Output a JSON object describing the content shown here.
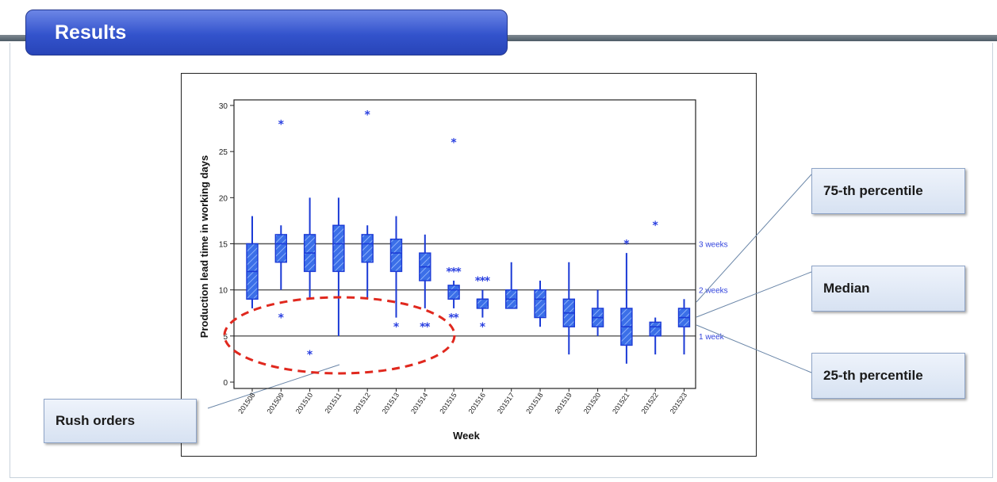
{
  "header": {
    "title": "Results"
  },
  "callouts": {
    "p75": "75-th percentile",
    "median": "Median",
    "p25": "25-th percentile",
    "rush": "Rush orders"
  },
  "colors": {
    "box": "#3b6fe8",
    "box_dark": "#1b3ad6",
    "outlier": "#2a40e0",
    "ellipse": "#e0281e",
    "header": "#3353cc"
  },
  "chart_data": {
    "type": "box",
    "xlabel": "Week",
    "ylabel": "Production lead time in working days",
    "ylim": [
      0,
      30
    ],
    "yticks": [
      0,
      5,
      10,
      15,
      20,
      25,
      30
    ],
    "categories": [
      "201508",
      "201509",
      "201510",
      "201511",
      "201512",
      "201513",
      "201514",
      "201515",
      "201516",
      "201517",
      "201518",
      "201519",
      "201520",
      "201521",
      "201522",
      "201523"
    ],
    "boxes": [
      {
        "q1": 9,
        "median": 12,
        "q3": 15,
        "whisker_low": 8,
        "whisker_high": 18,
        "outliers": []
      },
      {
        "q1": 13,
        "median": 15,
        "q3": 16,
        "whisker_low": 10,
        "whisker_high": 17,
        "outliers": [
          28,
          7
        ]
      },
      {
        "q1": 12,
        "median": 14,
        "q3": 16,
        "whisker_low": 9,
        "whisker_high": 20,
        "outliers": [
          3
        ]
      },
      {
        "q1": 12,
        "median": 15,
        "q3": 17,
        "whisker_low": 5,
        "whisker_high": 20,
        "outliers": []
      },
      {
        "q1": 13,
        "median": 15,
        "q3": 16,
        "whisker_low": 9,
        "whisker_high": 17,
        "outliers": [
          29
        ]
      },
      {
        "q1": 12,
        "median": 14,
        "q3": 15.5,
        "whisker_low": 7,
        "whisker_high": 18,
        "outliers": [
          6
        ]
      },
      {
        "q1": 11,
        "median": 12.5,
        "q3": 14,
        "whisker_low": 8,
        "whisker_high": 16,
        "outliers": [
          6,
          6
        ]
      },
      {
        "q1": 9,
        "median": 10,
        "q3": 10.5,
        "whisker_low": 8,
        "whisker_high": 11,
        "outliers": [
          26,
          12,
          12,
          12,
          7,
          7
        ]
      },
      {
        "q1": 8,
        "median": 9,
        "q3": 9,
        "whisker_low": 7,
        "whisker_high": 10,
        "outliers": [
          11,
          11,
          11,
          6
        ]
      },
      {
        "q1": 8,
        "median": 9,
        "q3": 10,
        "whisker_low": 8,
        "whisker_high": 13,
        "outliers": []
      },
      {
        "q1": 7,
        "median": 9,
        "q3": 10,
        "whisker_low": 6,
        "whisker_high": 11,
        "outliers": []
      },
      {
        "q1": 6,
        "median": 7.5,
        "q3": 9,
        "whisker_low": 3,
        "whisker_high": 13,
        "outliers": []
      },
      {
        "q1": 6,
        "median": 7,
        "q3": 8,
        "whisker_low": 5,
        "whisker_high": 10,
        "outliers": []
      },
      {
        "q1": 4,
        "median": 6,
        "q3": 8,
        "whisker_low": 2,
        "whisker_high": 14,
        "outliers": [
          15
        ]
      },
      {
        "q1": 5,
        "median": 6,
        "q3": 6.5,
        "whisker_low": 3,
        "whisker_high": 7,
        "outliers": [
          17
        ]
      },
      {
        "q1": 6,
        "median": 7,
        "q3": 8,
        "whisker_low": 3,
        "whisker_high": 9,
        "outliers": []
      }
    ],
    "reference_lines": [
      {
        "value": 15,
        "label": "3 weeks"
      },
      {
        "value": 10,
        "label": "2 weeks"
      },
      {
        "value": 5,
        "label": "1 week"
      }
    ],
    "grid": false,
    "legend": "none"
  }
}
